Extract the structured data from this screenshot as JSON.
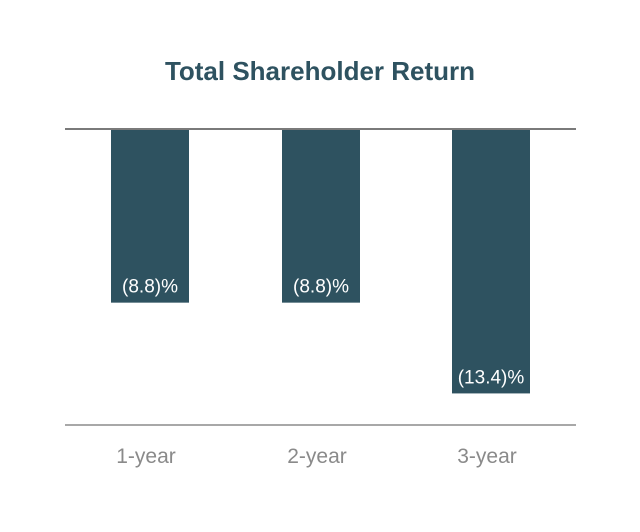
{
  "chart_data": {
    "type": "bar",
    "title": "Total Shareholder Return",
    "categories": [
      "1-year",
      "2-year",
      "3-year"
    ],
    "values": [
      -8.8,
      -8.8,
      -13.4
    ],
    "data_labels": [
      "(8.8)%",
      "(8.8)%",
      "(13.4)%"
    ],
    "xlabel": "",
    "ylabel": "",
    "ylim": [
      -15,
      0
    ],
    "grid": false,
    "legend": "none",
    "bar_color": "#2e5260",
    "axis_color": "#7a7a7a"
  }
}
